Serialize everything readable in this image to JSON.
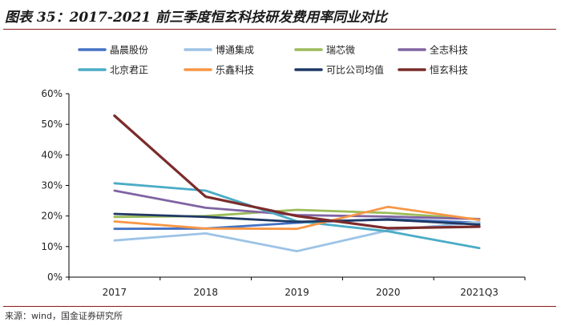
{
  "header": {
    "title": "图表 35：2017-2021 前三季度恒玄科技研发费用率同业对比"
  },
  "footer": {
    "source": "来源：wind，国金证券研究所"
  },
  "chart_data": {
    "type": "line",
    "categories": [
      "2017",
      "2018",
      "2019",
      "2020",
      "2021Q3"
    ],
    "ylim": [
      0,
      60
    ],
    "yticks": [
      "0%",
      "10%",
      "20%",
      "30%",
      "40%",
      "50%",
      "60%"
    ],
    "grid": false,
    "legend_position": "top",
    "series": [
      {
        "name": "晶晨股份",
        "color": "#4472c4",
        "values": [
          15.8,
          15.9,
          17.8,
          19.0,
          17.8
        ]
      },
      {
        "name": "博通集成",
        "color": "#9dc3e6",
        "values": [
          12.0,
          14.3,
          8.5,
          15.3,
          18.0
        ]
      },
      {
        "name": "瑞芯微",
        "color": "#9bbb59",
        "values": [
          19.7,
          20.0,
          22.0,
          21.0,
          19.0
        ]
      },
      {
        "name": "全志科技",
        "color": "#8064a2",
        "values": [
          28.3,
          22.7,
          20.3,
          19.8,
          19.0
        ]
      },
      {
        "name": "北京君正",
        "color": "#4bacc6",
        "values": [
          30.7,
          28.3,
          18.3,
          15.0,
          9.5
        ]
      },
      {
        "name": "乐鑫科技",
        "color": "#f79646",
        "values": [
          18.2,
          15.9,
          15.8,
          23.0,
          18.7
        ]
      },
      {
        "name": "可比公司均值",
        "color": "#1f3864",
        "values": [
          20.7,
          19.7,
          18.1,
          18.8,
          17.2
        ]
      },
      {
        "name": "恒玄科技",
        "color": "#7b2b2b",
        "values": [
          52.8,
          26.3,
          20.0,
          16.0,
          16.5
        ]
      }
    ]
  }
}
